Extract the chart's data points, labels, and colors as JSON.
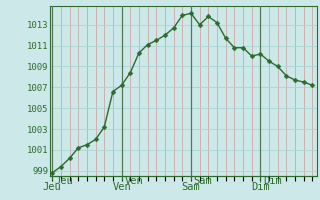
{
  "background_color": "#cce8e8",
  "grid_color_h": "#aad4d4",
  "grid_color_v": "#cc9999",
  "line_color": "#2d6a2d",
  "marker_color": "#2d6a2d",
  "ylim": [
    998.5,
    1014.8
  ],
  "yticks": [
    999,
    1001,
    1003,
    1005,
    1007,
    1009,
    1011,
    1013
  ],
  "day_labels": [
    "Jeu",
    "Ven",
    "Sam",
    "Dim"
  ],
  "day_positions": [
    0,
    8,
    16,
    24
  ],
  "xlim": [
    -0.3,
    30.5
  ],
  "x_values": [
    0,
    1,
    2,
    3,
    4,
    5,
    6,
    7,
    8,
    9,
    10,
    11,
    12,
    13,
    14,
    15,
    16,
    17,
    18,
    19,
    20,
    21,
    22,
    23,
    24,
    25,
    26,
    27,
    28,
    29,
    30
  ],
  "y_values": [
    998.8,
    999.4,
    1000.2,
    1001.2,
    1001.5,
    1002.0,
    1003.2,
    1006.6,
    1007.2,
    1008.4,
    1010.3,
    1011.1,
    1011.5,
    1012.0,
    1012.7,
    1013.9,
    1014.1,
    1013.0,
    1013.8,
    1013.2,
    1011.7,
    1010.8,
    1010.8,
    1010.0,
    1010.2,
    1009.5,
    1009.0,
    1008.1,
    1007.7,
    1007.5,
    1007.2
  ],
  "vline_color": "#557755",
  "tick_fontsize": 6.5,
  "day_fontsize": 7.5,
  "linewidth": 1.0,
  "markersize": 2.5
}
